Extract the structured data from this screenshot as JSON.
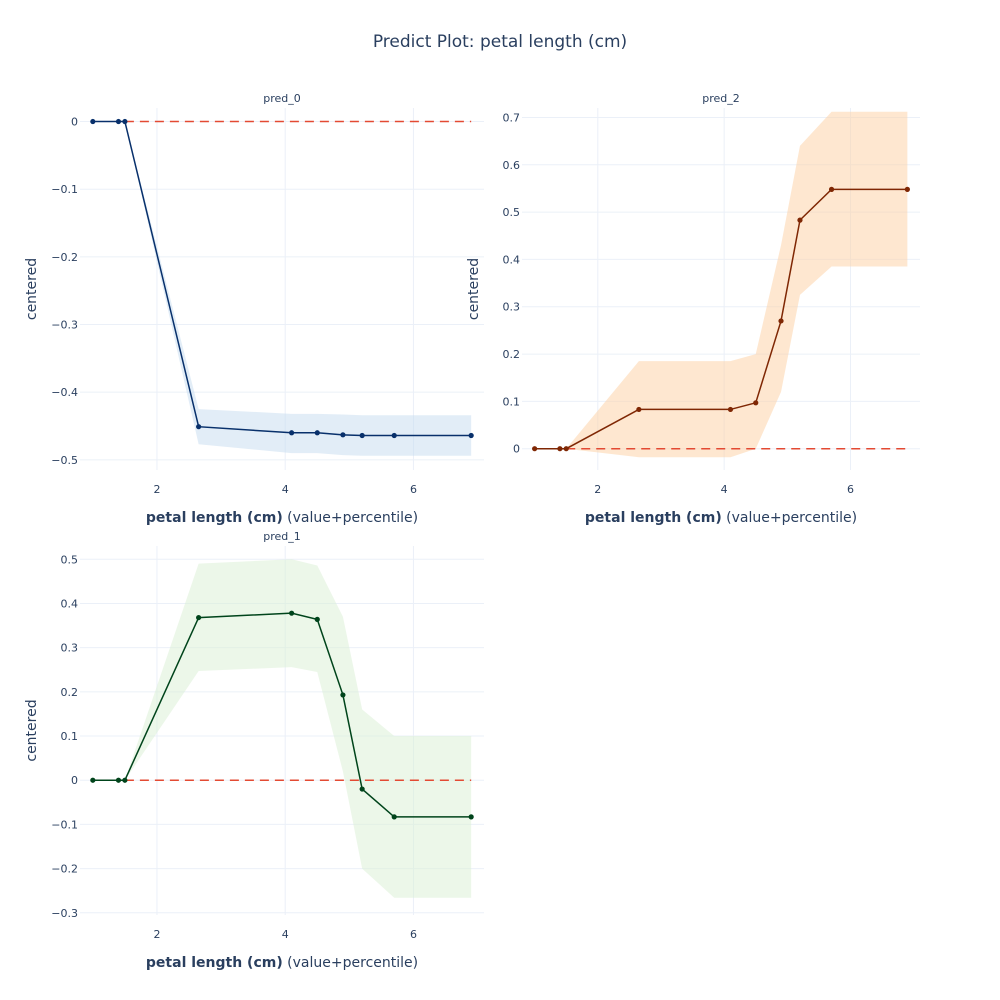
{
  "title": "Predict Plot: petal length (cm)",
  "chart_data": [
    {
      "type": "line",
      "subtitle": "pred_0",
      "xlabel_bold": "petal length (cm)",
      "xlabel_rest": " (value+percentile)",
      "ylabel": "centered",
      "xlim": [
        0.8,
        7.1
      ],
      "ylim": [
        -0.515,
        0.02
      ],
      "xticks": [
        2,
        4,
        6
      ],
      "yticks": [
        0,
        -0.1,
        -0.2,
        -0.3,
        -0.4,
        -0.5
      ],
      "ytick_labels": [
        "0",
        "−0.1",
        "−0.2",
        "−0.3",
        "−0.4",
        "−0.5"
      ],
      "xtick_labels": [
        "2",
        "4",
        "6"
      ],
      "line_color": "#08306b",
      "band_color": "#c6dbef",
      "reference_color": "#e34a33",
      "x": [
        1.0,
        1.4,
        1.5,
        2.65,
        4.1,
        4.5,
        4.9,
        5.2,
        5.7,
        6.9
      ],
      "y": [
        0,
        0,
        0,
        -0.451,
        -0.46,
        -0.46,
        -0.463,
        -0.464,
        -0.464,
        -0.464
      ],
      "upper": [
        0,
        0,
        0,
        -0.425,
        -0.432,
        -0.432,
        -0.433,
        -0.434,
        -0.434,
        -0.434
      ],
      "lower": [
        0,
        0,
        0,
        -0.477,
        -0.49,
        -0.49,
        -0.493,
        -0.494,
        -0.494,
        -0.494
      ]
    },
    {
      "type": "line",
      "subtitle": "pred_2",
      "xlabel_bold": "petal length (cm)",
      "xlabel_rest": " (value+percentile)",
      "ylabel": "centered",
      "xlim": [
        0.8,
        7.1
      ],
      "ylim": [
        -0.045,
        0.72
      ],
      "xticks": [
        2,
        4,
        6
      ],
      "yticks": [
        0,
        0.1,
        0.2,
        0.3,
        0.4,
        0.5,
        0.6,
        0.7
      ],
      "ytick_labels": [
        "0",
        "0.1",
        "0.2",
        "0.3",
        "0.4",
        "0.5",
        "0.6",
        "0.7"
      ],
      "xtick_labels": [
        "2",
        "4",
        "6"
      ],
      "line_color": "#7f2704",
      "band_color": "#fdd0a2",
      "reference_color": "#e34a33",
      "x": [
        1.0,
        1.4,
        1.5,
        2.65,
        4.1,
        4.5,
        4.9,
        5.2,
        5.7,
        6.9
      ],
      "y": [
        0,
        0,
        0,
        0.083,
        0.083,
        0.097,
        0.27,
        0.483,
        0.548,
        0.548
      ],
      "upper": [
        0,
        0,
        0,
        0.185,
        0.185,
        0.2,
        0.43,
        0.64,
        0.712,
        0.712
      ],
      "lower": [
        0,
        0,
        0,
        -0.018,
        -0.018,
        0.0,
        0.12,
        0.325,
        0.385,
        0.385
      ]
    },
    {
      "type": "line",
      "subtitle": "pred_1",
      "xlabel_bold": "petal length (cm)",
      "xlabel_rest": " (value+percentile)",
      "ylabel": "centered",
      "xlim": [
        0.8,
        7.1
      ],
      "ylim": [
        -0.305,
        0.53
      ],
      "xticks": [
        2,
        4,
        6
      ],
      "yticks": [
        0.5,
        0.4,
        0.3,
        0.2,
        0.1,
        0,
        -0.1,
        -0.2,
        -0.3
      ],
      "ytick_labels": [
        "0.5",
        "0.4",
        "0.3",
        "0.2",
        "0.1",
        "0",
        "−0.1",
        "−0.2",
        "−0.3"
      ],
      "xtick_labels": [
        "2",
        "4",
        "6"
      ],
      "line_color": "#00441b",
      "band_color": "#d9f0d3",
      "reference_color": "#e34a33",
      "x": [
        1.0,
        1.4,
        1.5,
        2.65,
        4.1,
        4.5,
        4.9,
        5.2,
        5.7,
        6.9
      ],
      "y": [
        0,
        0,
        0,
        0.368,
        0.378,
        0.364,
        0.193,
        -0.02,
        -0.083,
        -0.083
      ],
      "upper": [
        0,
        0,
        0,
        0.49,
        0.5,
        0.486,
        0.37,
        0.16,
        0.1,
        0.1
      ],
      "lower": [
        0,
        0,
        0,
        0.247,
        0.256,
        0.245,
        0.02,
        -0.2,
        -0.266,
        -0.266
      ]
    }
  ]
}
